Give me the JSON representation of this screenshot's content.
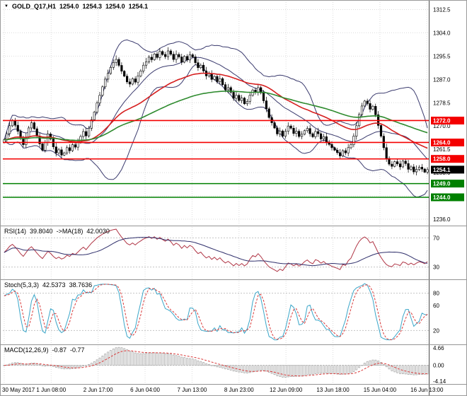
{
  "window": {
    "title_symbol": "GOLD_Q17,H1",
    "open": "1254.0",
    "high": "1254.3",
    "low": "1254.0",
    "close": "1254.1"
  },
  "colors": {
    "grid": "#dcdcdc",
    "bb": "#3b3b6e",
    "ma_red": "#d61f1f",
    "ma_green": "#2e8b2e",
    "level_red": "#f40000",
    "level_green": "#008000",
    "level_silver": "#c4c4c4",
    "rsi_line": "#b03545",
    "rsi_ma": "#2f2f6b",
    "stoch_k": "#3aa6c9",
    "stoch_d": "#d93a3a",
    "macd_hist": "#aaaaaa",
    "macd_signal": "#d93a3a"
  },
  "chart_data": {
    "type": "candlestick",
    "title": "GOLD_Q17,H1",
    "x_labels": [
      "30 May 2017",
      "1 Jun 08:00",
      "2 Jun 17:00",
      "6 Jun 04:00",
      "7 Jun 13:00",
      "8 Jun 23:00",
      "12 Jun 09:00",
      "13 Jun 18:00",
      "15 Jun 04:00",
      "16 Jun 13:00"
    ],
    "main": {
      "y_axis_labels": [
        "1312.5",
        "1304.0",
        "1295.5",
        "1287.0",
        "1278.5",
        "1270.0",
        "1261.5",
        "1253.0",
        "1244.5",
        "1236.0"
      ],
      "y_range": [
        1234.2,
        1315.2
      ],
      "closes": [
        1265.0,
        1267.2,
        1270.1,
        1272.0,
        1270.3,
        1268.1,
        1265.4,
        1263.2,
        1266.0,
        1269.3,
        1271.2,
        1269.0,
        1266.3,
        1263.5,
        1261.2,
        1264.0,
        1267.1,
        1265.3,
        1262.4,
        1260.2,
        1261.3,
        1259.4,
        1260.2,
        1262.1,
        1261.0,
        1263.2,
        1262.3,
        1264.1,
        1266.2,
        1268.0,
        1266.4,
        1269.2,
        1272.3,
        1275.1,
        1278.4,
        1281.2,
        1284.3,
        1287.1,
        1289.2,
        1291.4,
        1293.2,
        1294.3,
        1292.1,
        1290.0,
        1288.2,
        1286.1,
        1285.3,
        1287.2,
        1286.0,
        1288.3,
        1290.1,
        1292.2,
        1293.4,
        1295.1,
        1294.2,
        1296.3,
        1295.0,
        1297.2,
        1296.1,
        1295.3,
        1297.4,
        1296.2,
        1294.3,
        1296.1,
        1295.2,
        1293.3,
        1295.4,
        1294.1,
        1296.0,
        1295.2,
        1293.1,
        1291.3,
        1292.2,
        1290.1,
        1288.3,
        1289.2,
        1287.0,
        1288.1,
        1286.2,
        1287.3,
        1285.1,
        1283.2,
        1284.0,
        1282.3,
        1280.1,
        1281.2,
        1279.3,
        1280.2,
        1278.1,
        1279.0,
        1281.2,
        1283.1,
        1282.3,
        1284.0,
        1282.1,
        1279.2,
        1276.3,
        1273.1,
        1271.2,
        1269.3,
        1267.1,
        1268.2,
        1266.3,
        1268.1,
        1270.0,
        1269.2,
        1267.3,
        1268.1,
        1266.2,
        1267.0,
        1268.3,
        1269.1,
        1267.2,
        1266.1,
        1268.0,
        1267.2,
        1265.3,
        1266.1,
        1264.2,
        1263.3,
        1262.1,
        1261.2,
        1260.3,
        1259.1,
        1261.0,
        1260.2,
        1262.1,
        1263.2,
        1266.3,
        1270.1,
        1274.2,
        1277.3,
        1279.1,
        1278.2,
        1276.1,
        1277.2,
        1274.1,
        1270.2,
        1266.3,
        1262.1,
        1258.2,
        1256.1,
        1255.3,
        1257.0,
        1256.2,
        1255.1,
        1257.2,
        1256.3,
        1254.2,
        1255.1,
        1253.3,
        1254.2,
        1255.0,
        1254.3,
        1253.2,
        1254.1
      ],
      "levels": [
        {
          "price": 1272.0,
          "color": "red",
          "label": "1272.0"
        },
        {
          "price": 1264.0,
          "color": "red",
          "label": "1264.0"
        },
        {
          "price": 1258.0,
          "color": "red",
          "label": "1258.0"
        },
        {
          "price": 1249.0,
          "color": "green",
          "label": "1249.0"
        },
        {
          "price": 1244.0,
          "color": "green",
          "label": "1244.0"
        }
      ],
      "current_price": {
        "value": 1254.1,
        "label": "1254.1"
      },
      "overlays": {
        "bollinger_period": 20,
        "bollinger_dev": 2,
        "ma_red_period": 40,
        "ma_green_period": 85
      }
    },
    "indicators": {
      "rsi": {
        "name": "RSI(14)",
        "value": "39.8040",
        "ma_name": "->MA(18)",
        "ma_value": "42.0030",
        "period": 14,
        "ma_period": 18,
        "levels": [
          70,
          30
        ],
        "axis_labels": [
          "70",
          "30"
        ],
        "range": [
          15,
          85
        ]
      },
      "stoch": {
        "name": "Stoch(5,3,3)",
        "k_value": "42.5373",
        "d_value": "38.7636",
        "k_period": 5,
        "slowing": 3,
        "d_period": 3,
        "levels": [
          80,
          20
        ],
        "axis_labels": [
          "80",
          "60",
          "20"
        ],
        "axis_label_values": [
          80,
          60,
          20
        ],
        "range": [
          0,
          100
        ]
      },
      "macd": {
        "name": "MACD(12,26,9)",
        "value": "-0.87",
        "signal_value": "-0.77",
        "fast": 12,
        "slow": 26,
        "signal": 9,
        "axis_labels": [
          "4.66",
          "0.00",
          "-4.14"
        ],
        "axis_label_values": [
          4.66,
          0,
          -4.14
        ],
        "range": [
          5.0,
          -4.4
        ]
      }
    }
  }
}
